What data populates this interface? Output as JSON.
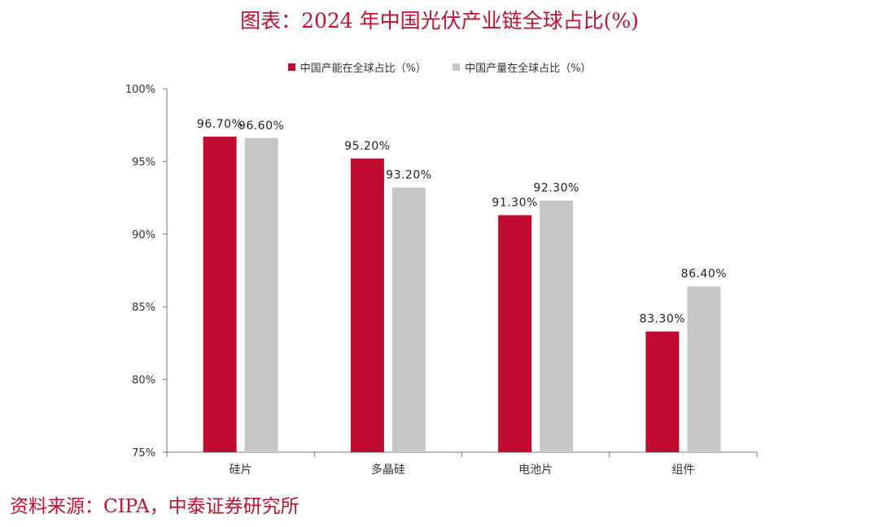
{
  "title": "图表：2024 年中国光伏产业链全球占比(%)",
  "source": "资料来源：CIPA，中泰证券研究所",
  "colors": {
    "capacity": "#be0b2f",
    "output": "#c6c6c6",
    "title": "#c0102f"
  },
  "chart_data": {
    "type": "bar",
    "categories": [
      "硅片",
      "多晶硅",
      "电池片",
      "组件"
    ],
    "series": [
      {
        "name": "中国产能在全球占比（%）",
        "values": [
          96.7,
          95.2,
          91.3,
          83.3
        ],
        "labels": [
          "96.70%",
          "95.20%",
          "91.30%",
          "83.30%"
        ]
      },
      {
        "name": "中国产量在全球占比（%）",
        "values": [
          96.6,
          93.2,
          92.3,
          86.4
        ],
        "labels": [
          "96.60%",
          "93.20%",
          "92.30%",
          "86.40%"
        ]
      }
    ],
    "yticks": [
      "75%",
      "80%",
      "85%",
      "90%",
      "95%",
      "100%"
    ],
    "ylim": [
      75,
      100
    ],
    "legend": "top",
    "grid": false
  }
}
